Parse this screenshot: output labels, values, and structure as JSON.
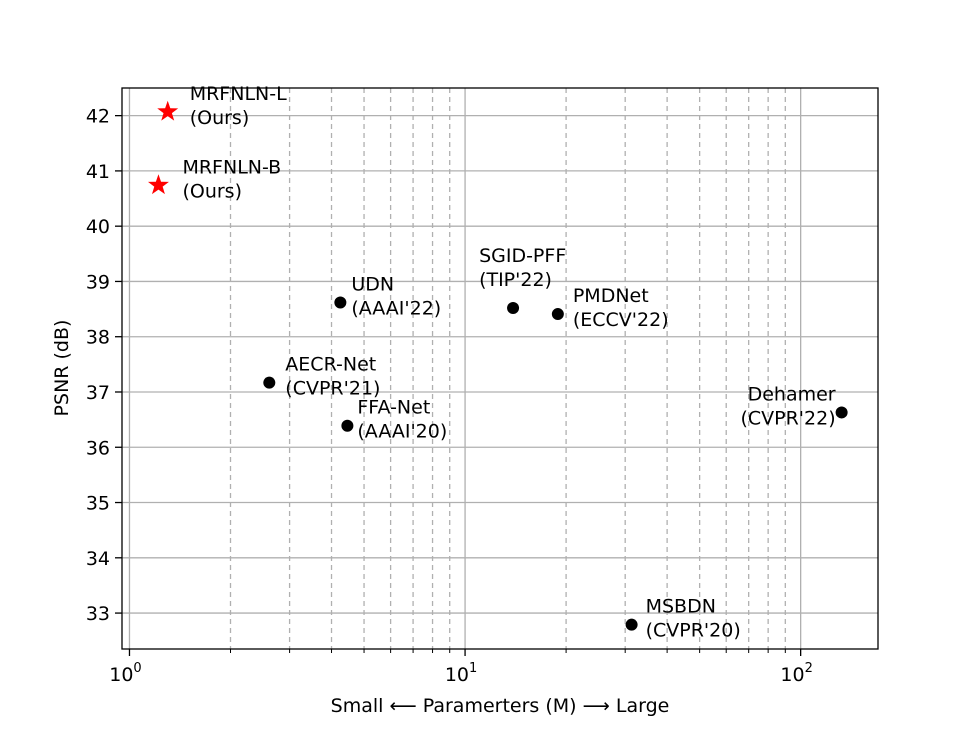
{
  "chart_data": {
    "type": "scatter",
    "title": "",
    "xlabel": "Small ⟵  Paramerters (M)  ⟶ Large",
    "ylabel": "PSNR (dB)",
    "xscale": "log",
    "xlim": [
      0.95,
      170
    ],
    "ylim": [
      32.35,
      42.5
    ],
    "grid": true,
    "x_ticks": [
      {
        "value": 1,
        "base": "10",
        "exp": "0"
      },
      {
        "value": 10,
        "base": "10",
        "exp": "1"
      },
      {
        "value": 100,
        "base": "10",
        "exp": "2"
      }
    ],
    "y_ticks": [
      "33",
      "34",
      "35",
      "36",
      "37",
      "38",
      "39",
      "40",
      "41",
      "42"
    ],
    "points": [
      {
        "name": "MRFNLN-L",
        "note": "(Ours)",
        "x": 1.3,
        "y": 42.07,
        "marker": "star",
        "color": "#ff0000"
      },
      {
        "name": "MRFNLN-B",
        "note": "(Ours)",
        "x": 1.22,
        "y": 40.74,
        "marker": "star",
        "color": "#ff0000"
      },
      {
        "name": "UDN",
        "note": "(AAAI'22)",
        "x": 4.25,
        "y": 38.62,
        "marker": "circle",
        "color": "#000000"
      },
      {
        "name": "SGID-PFF",
        "note": "(TIP'22)",
        "x": 13.9,
        "y": 38.52,
        "marker": "circle",
        "color": "#000000"
      },
      {
        "name": "PMDNet",
        "note": "(ECCV'22)",
        "x": 18.9,
        "y": 38.41,
        "marker": "circle",
        "color": "#000000"
      },
      {
        "name": "AECR-Net",
        "note": "(CVPR'21)",
        "x": 2.61,
        "y": 37.17,
        "marker": "circle",
        "color": "#000000"
      },
      {
        "name": "FFA-Net",
        "note": "(AAAI'20)",
        "x": 4.46,
        "y": 36.39,
        "marker": "circle",
        "color": "#000000"
      },
      {
        "name": "Dehamer",
        "note": "(CVPR'22)",
        "x": 132.45,
        "y": 36.63,
        "marker": "circle",
        "color": "#000000"
      },
      {
        "name": "MSBDN",
        "note": "(CVPR'20)",
        "x": 31.35,
        "y": 32.79,
        "marker": "circle",
        "color": "#000000"
      }
    ]
  }
}
